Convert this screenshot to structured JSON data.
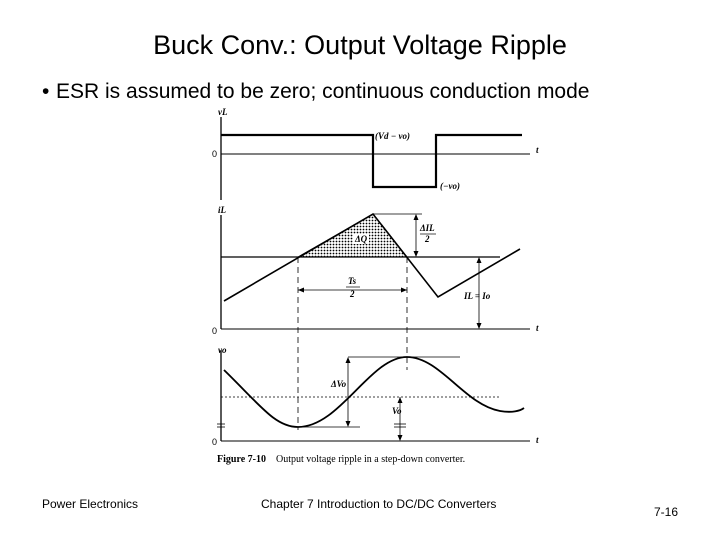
{
  "slide": {
    "title": "Buck Conv.: Output Voltage Ripple",
    "bullet_symbol": "•",
    "bullet_text": "ESR is assumed to be zero; continuous conduction mode"
  },
  "figure": {
    "vL_axis": "vL",
    "vL_high": "(Vd − vo)",
    "vL_low": "(−vo)",
    "vL_zero": "0",
    "t_label": "t",
    "iL_axis": "iL",
    "delta_iL": "ΔIL",
    "delta_iL_den": "2",
    "area_label": "ΔQ",
    "ts_num": "Ts",
    "ts_den": "2",
    "iL_avg": "IL = Io",
    "iL_zero": "0",
    "vo_axis": "vo",
    "delta_vo": "ΔVo",
    "vo_avg": "Vo",
    "vo_zero": "0",
    "caption_number": "Figure 7-10",
    "caption_text": "Output voltage ripple in a step-down converter."
  },
  "footer": {
    "left": "Power Electronics",
    "center": "Chapter 7 Introduction to DC/DC Converters",
    "page": "7-16"
  }
}
